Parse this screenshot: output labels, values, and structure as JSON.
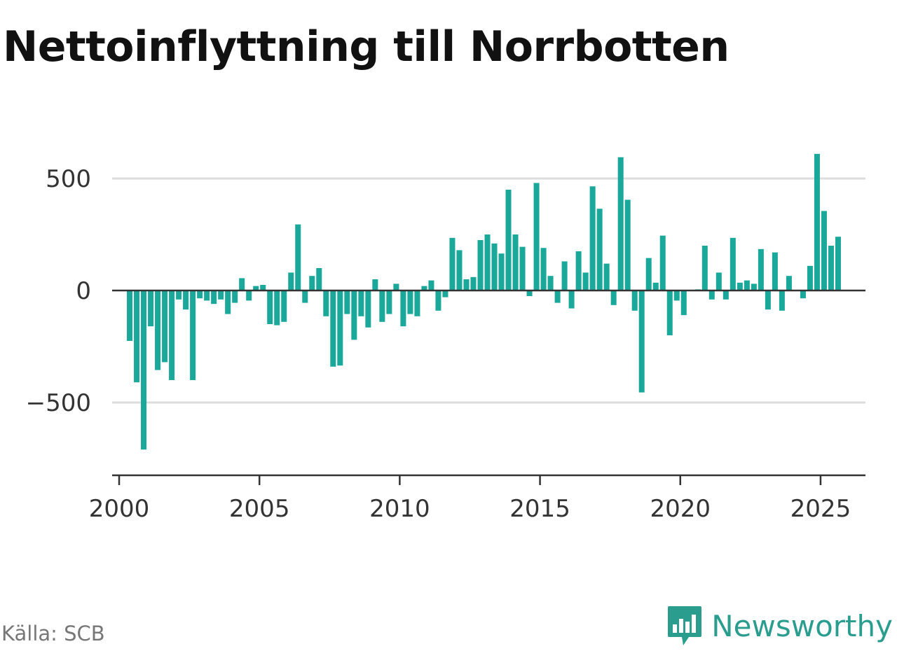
{
  "title": "Nettoinflyttning till Norrbotten",
  "source": "Källa: SCB",
  "brand": {
    "name": "Newsworthy",
    "icon": "newsworthy-logo-icon"
  },
  "colors": {
    "bar": "#1aa89b",
    "grid": "#dddddd",
    "axis": "#333333",
    "brand": "#2a9d8f"
  },
  "chart_data": {
    "type": "bar",
    "title": "Nettoinflyttning till Norrbotten",
    "xlabel": "",
    "ylabel": "",
    "ylim": [
      -800,
      600
    ],
    "xlim": [
      1999.75,
      2026.6
    ],
    "y_ticks": [
      -500,
      0,
      500
    ],
    "y_tick_labels": [
      "−500",
      "0",
      "500"
    ],
    "x_ticks": [
      2000,
      2005,
      2010,
      2015,
      2020,
      2025
    ],
    "x_tick_labels": [
      "2000",
      "2005",
      "2010",
      "2015",
      "2020",
      "2025"
    ],
    "grid": "horizontal",
    "legend": "none",
    "x": [
      2000.125,
      2000.375,
      2000.625,
      2000.875,
      2001.125,
      2001.375,
      2001.625,
      2001.875,
      2002.125,
      2002.375,
      2002.625,
      2002.875,
      2003.125,
      2003.375,
      2003.625,
      2003.875,
      2004.125,
      2004.375,
      2004.625,
      2004.875,
      2005.125,
      2005.375,
      2005.625,
      2005.875,
      2006.125,
      2006.375,
      2006.625,
      2006.875,
      2007.125,
      2007.375,
      2007.625,
      2007.875,
      2008.125,
      2008.375,
      2008.625,
      2008.875,
      2009.125,
      2009.375,
      2009.625,
      2009.875,
      2010.125,
      2010.375,
      2010.625,
      2010.875,
      2011.125,
      2011.375,
      2011.625,
      2011.875,
      2012.125,
      2012.375,
      2012.625,
      2012.875,
      2013.125,
      2013.375,
      2013.625,
      2013.875,
      2014.125,
      2014.375,
      2014.625,
      2014.875,
      2015.125,
      2015.375,
      2015.625,
      2015.875,
      2016.125,
      2016.375,
      2016.625,
      2016.875,
      2017.125,
      2017.375,
      2017.625,
      2017.875,
      2018.125,
      2018.375,
      2018.625,
      2018.875,
      2019.125,
      2019.375,
      2019.625,
      2019.875,
      2020.125,
      2020.375,
      2020.625,
      2020.875,
      2021.125,
      2021.375,
      2021.625,
      2021.875,
      2022.125,
      2022.375,
      2022.625,
      2022.875,
      2023.125,
      2023.375,
      2023.625,
      2023.875,
      2024.125,
      2024.375,
      2024.625,
      2024.875,
      2025.125,
      2025.375,
      2025.625,
      2025.875
    ],
    "values": [
      0,
      -225,
      -410,
      -710,
      -160,
      -355,
      -320,
      -400,
      -40,
      -85,
      -400,
      -35,
      -45,
      -60,
      -40,
      -105,
      -55,
      55,
      -45,
      20,
      25,
      -150,
      -155,
      -140,
      80,
      295,
      -55,
      65,
      100,
      -115,
      -340,
      -335,
      -105,
      -220,
      -115,
      -165,
      50,
      -140,
      -105,
      30,
      -160,
      -105,
      -115,
      20,
      45,
      -90,
      -30,
      235,
      180,
      50,
      60,
      225,
      250,
      210,
      165,
      450,
      250,
      195,
      -25,
      480,
      190,
      65,
      -55,
      130,
      -80,
      175,
      80,
      465,
      365,
      120,
      -65,
      595,
      405,
      -90,
      -455,
      145,
      35,
      245,
      -200,
      -45,
      -110,
      0,
      5,
      200,
      -40,
      80,
      -40,
      235,
      35,
      45,
      30,
      185,
      -85,
      170,
      -90,
      65,
      0,
      -35,
      110,
      610,
      355,
      200,
      240,
      0
    ]
  }
}
